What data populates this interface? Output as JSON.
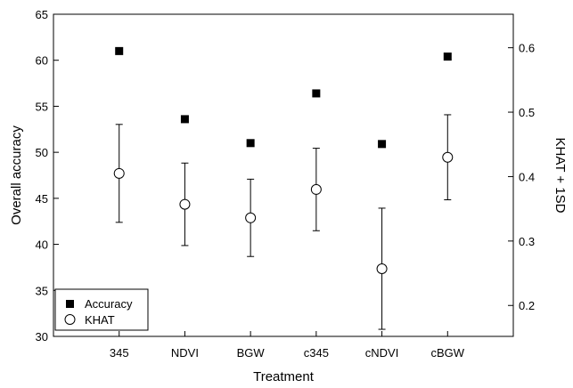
{
  "chart_data": {
    "type": "scatter",
    "title": "",
    "xlabel": "Treatment",
    "ylabel": "Overall accuracy",
    "y2label": "KHAT + 1SD",
    "categories": [
      "345",
      "NDVI",
      "BGW",
      "c345",
      "cNDVI",
      "cBGW"
    ],
    "ylim": [
      30,
      65
    ],
    "yticks": [
      30,
      35,
      40,
      45,
      50,
      55,
      60,
      65
    ],
    "y2lim": [
      0.152,
      0.652
    ],
    "y2ticks": [
      0.2,
      0.3,
      0.4,
      0.5,
      0.6
    ],
    "grid": false,
    "legend_position": "bottom-left",
    "series": [
      {
        "name": "Accuracy",
        "marker": "filled-square",
        "axis": "left",
        "values": [
          61.0,
          53.6,
          51.0,
          56.4,
          50.9,
          60.4
        ]
      },
      {
        "name": "KHAT",
        "marker": "open-circle",
        "axis": "right",
        "values": [
          0.405,
          0.357,
          0.336,
          0.38,
          0.257,
          0.43
        ],
        "error": [
          0.076,
          0.064,
          0.06,
          0.064,
          0.094,
          0.066
        ]
      }
    ]
  }
}
